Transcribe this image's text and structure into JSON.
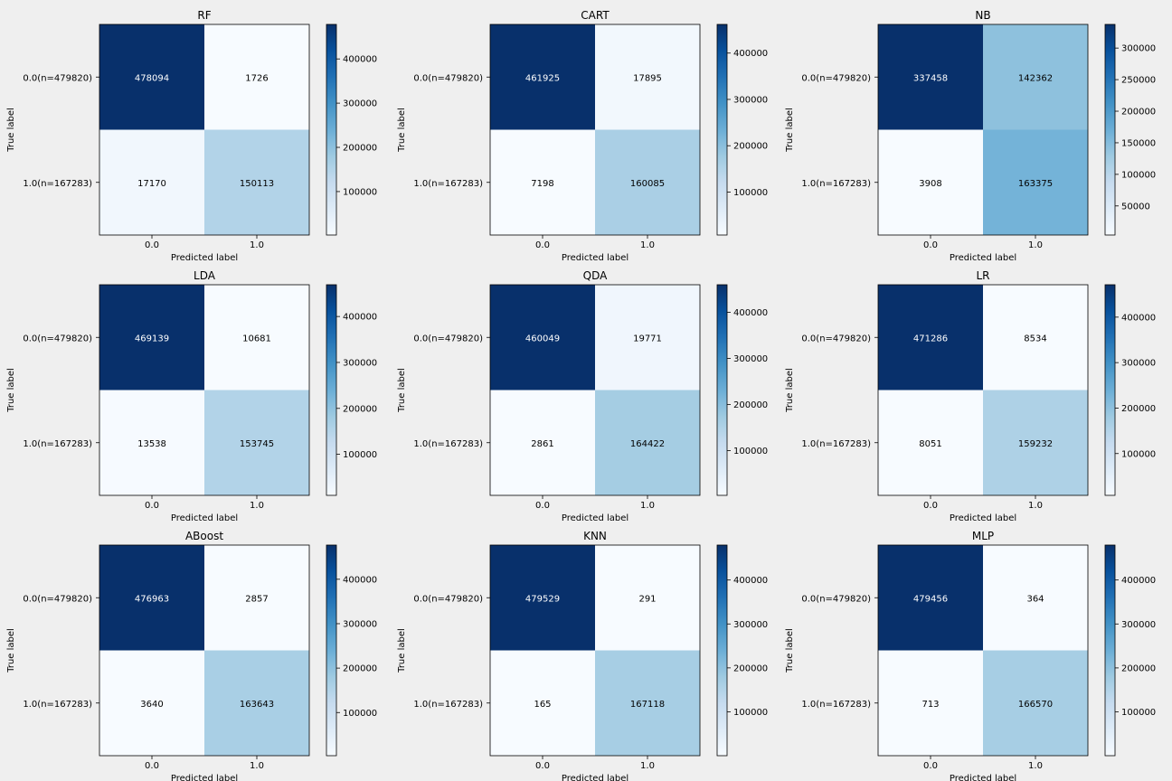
{
  "chart_data": [
    {
      "type": "heatmap",
      "title": "RF",
      "xlabel": "Predicted label",
      "ylabel": "True label",
      "x_ticks": [
        "0.0",
        "1.0"
      ],
      "y_ticks": [
        "0.0(n=479820)",
        "1.0(n=167283)"
      ],
      "values": [
        [
          478094,
          1726
        ],
        [
          17170,
          150113
        ]
      ],
      "colorbar_ticks": [
        100000,
        200000,
        300000,
        400000
      ],
      "colormap": "Blues"
    },
    {
      "type": "heatmap",
      "title": "CART",
      "xlabel": "Predicted label",
      "ylabel": "True label",
      "x_ticks": [
        "0.0",
        "1.0"
      ],
      "y_ticks": [
        "0.0(n=479820)",
        "1.0(n=167283)"
      ],
      "values": [
        [
          461925,
          17895
        ],
        [
          7198,
          160085
        ]
      ],
      "colorbar_ticks": [
        100000,
        200000,
        300000,
        400000
      ],
      "colormap": "Blues"
    },
    {
      "type": "heatmap",
      "title": "NB",
      "xlabel": "Predicted label",
      "ylabel": "True label",
      "x_ticks": [
        "0.0",
        "1.0"
      ],
      "y_ticks": [
        "0.0(n=479820)",
        "1.0(n=167283)"
      ],
      "values": [
        [
          337458,
          142362
        ],
        [
          3908,
          163375
        ]
      ],
      "colorbar_ticks": [
        50000,
        100000,
        150000,
        200000,
        250000,
        300000
      ],
      "colormap": "Blues"
    },
    {
      "type": "heatmap",
      "title": "LDA",
      "xlabel": "Predicted label",
      "ylabel": "True label",
      "x_ticks": [
        "0.0",
        "1.0"
      ],
      "y_ticks": [
        "0.0(n=479820)",
        "1.0(n=167283)"
      ],
      "values": [
        [
          469139,
          10681
        ],
        [
          13538,
          153745
        ]
      ],
      "colorbar_ticks": [
        100000,
        200000,
        300000,
        400000
      ],
      "colormap": "Blues"
    },
    {
      "type": "heatmap",
      "title": "QDA",
      "xlabel": "Predicted label",
      "ylabel": "True label",
      "x_ticks": [
        "0.0",
        "1.0"
      ],
      "y_ticks": [
        "0.0(n=479820)",
        "1.0(n=167283)"
      ],
      "values": [
        [
          460049,
          19771
        ],
        [
          2861,
          164422
        ]
      ],
      "colorbar_ticks": [
        100000,
        200000,
        300000,
        400000
      ],
      "colormap": "Blues"
    },
    {
      "type": "heatmap",
      "title": "LR",
      "xlabel": "Predicted label",
      "ylabel": "True label",
      "x_ticks": [
        "0.0",
        "1.0"
      ],
      "y_ticks": [
        "0.0(n=479820)",
        "1.0(n=167283)"
      ],
      "values": [
        [
          471286,
          8534
        ],
        [
          8051,
          159232
        ]
      ],
      "colorbar_ticks": [
        100000,
        200000,
        300000,
        400000
      ],
      "colormap": "Blues"
    },
    {
      "type": "heatmap",
      "title": "ABoost",
      "xlabel": "Predicted label",
      "ylabel": "True label",
      "x_ticks": [
        "0.0",
        "1.0"
      ],
      "y_ticks": [
        "0.0(n=479820)",
        "1.0(n=167283)"
      ],
      "values": [
        [
          476963,
          2857
        ],
        [
          3640,
          163643
        ]
      ],
      "colorbar_ticks": [
        100000,
        200000,
        300000,
        400000
      ],
      "colormap": "Blues"
    },
    {
      "type": "heatmap",
      "title": "KNN",
      "xlabel": "Predicted label",
      "ylabel": "True label",
      "x_ticks": [
        "0.0",
        "1.0"
      ],
      "y_ticks": [
        "0.0(n=479820)",
        "1.0(n=167283)"
      ],
      "values": [
        [
          479529,
          291
        ],
        [
          165,
          167118
        ]
      ],
      "colorbar_ticks": [
        100000,
        200000,
        300000,
        400000
      ],
      "colormap": "Blues"
    },
    {
      "type": "heatmap",
      "title": "MLP",
      "xlabel": "Predicted label",
      "ylabel": "True label",
      "x_ticks": [
        "0.0",
        "1.0"
      ],
      "y_ticks": [
        "0.0(n=479820)",
        "1.0(n=167283)"
      ],
      "values": [
        [
          479456,
          364
        ],
        [
          713,
          166570
        ]
      ],
      "colorbar_ticks": [
        100000,
        200000,
        300000,
        400000
      ],
      "colormap": "Blues"
    }
  ]
}
